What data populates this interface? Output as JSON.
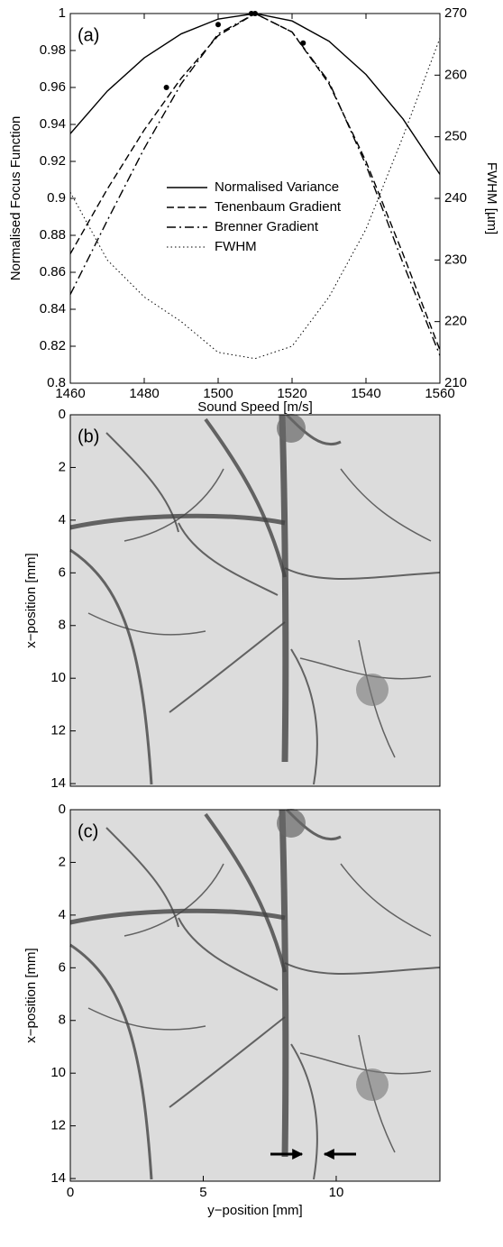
{
  "chart_data": [
    {
      "type": "line",
      "label": "(a)",
      "xlabel": "Sound Speed [m/s]",
      "ylabel": "Normalised Focus Function",
      "y2label": "FWHM [µm]",
      "xlim": [
        1460,
        1560
      ],
      "xticks": [
        1460,
        1480,
        1500,
        1520,
        1540,
        1560
      ],
      "ylim": [
        0.8,
        1
      ],
      "yticks": [
        0.8,
        0.82,
        0.84,
        0.86,
        0.88,
        0.9,
        0.92,
        0.94,
        0.96,
        0.98,
        1
      ],
      "y2lim": [
        210,
        270
      ],
      "y2ticks": [
        210,
        220,
        230,
        240,
        250,
        260,
        270
      ],
      "x": [
        1460,
        1470,
        1480,
        1490,
        1500,
        1510,
        1520,
        1530,
        1540,
        1550,
        1560
      ],
      "series": [
        {
          "name": "Normalised Variance",
          "color": "#000000",
          "dash": "solid",
          "values": [
            0.935,
            0.958,
            0.976,
            0.989,
            0.997,
            1.0,
            0.996,
            0.985,
            0.967,
            0.943,
            0.913
          ]
        },
        {
          "name": "Tenenbaum Gradient",
          "color": "#000000",
          "dash": "dashed",
          "values": [
            0.87,
            0.905,
            0.937,
            0.965,
            0.988,
            1.0,
            0.99,
            0.962,
            0.92,
            0.87,
            0.818
          ]
        },
        {
          "name": "Brenner Gradient",
          "color": "#000000",
          "dash": "dashdot",
          "values": [
            0.848,
            0.888,
            0.927,
            0.962,
            0.989,
            1.0,
            0.99,
            0.963,
            0.918,
            0.865,
            0.815
          ]
        },
        {
          "name": "FWHM",
          "color": "#000000",
          "dash": "dotted",
          "axis": "y2",
          "values": [
            241,
            230,
            224,
            220,
            215,
            214,
            216,
            224,
            235,
            250,
            266
          ]
        }
      ],
      "points": {
        "x": [
          1486,
          1500,
          1509,
          1510,
          1523
        ],
        "values": [
          0.96,
          0.994,
          1.0,
          1.0,
          0.984
        ]
      }
    },
    {
      "type": "image",
      "label": "(b)",
      "ylabel": "x−position [mm]",
      "ylim": [
        0,
        14.1
      ],
      "yticks": [
        0,
        2,
        4,
        6,
        8,
        10,
        12,
        14
      ]
    },
    {
      "type": "image",
      "label": "(c)",
      "xlabel": "y−position [mm]",
      "ylabel": "x−position [mm]",
      "xlim": [
        0,
        13.9
      ],
      "xticks": [
        0,
        5,
        10
      ],
      "ylim": [
        0,
        14.1
      ],
      "yticks": [
        0,
        2,
        4,
        6,
        8,
        10,
        12,
        14
      ]
    }
  ]
}
